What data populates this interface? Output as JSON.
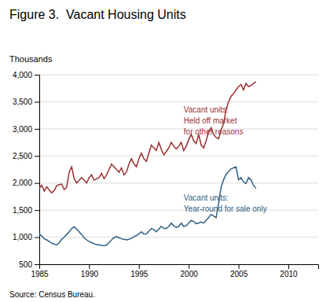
{
  "chart_data": {
    "type": "line",
    "title": "Figure 3.  Vacant Housing Units",
    "ylabel": "Thousands",
    "source": "Source: Census Bureau.",
    "xlim": [
      1985,
      2013.0
    ],
    "ylim": [
      500,
      4000
    ],
    "xticks": [
      1985,
      1990,
      1995,
      2000,
      2005,
      2010
    ],
    "yticks": [
      500,
      {
        "value": 1000,
        "label": "1,000"
      },
      {
        "value": 1500,
        "label": "1,500"
      },
      {
        "value": 2000,
        "label": "2,000"
      },
      {
        "value": 2500,
        "label": "2,500"
      },
      {
        "value": 3000,
        "label": "3,000"
      },
      {
        "value": 3500,
        "label": "3,500"
      },
      {
        "value": 4000,
        "label": "4,000"
      }
    ],
    "grid": true,
    "x": [
      1985,
      1985.25,
      1985.5,
      1985.75,
      1986,
      1986.25,
      1986.5,
      1986.75,
      1987,
      1987.25,
      1987.5,
      1987.75,
      1988,
      1988.25,
      1988.5,
      1988.75,
      1989,
      1989.25,
      1989.5,
      1989.75,
      1990,
      1990.25,
      1990.5,
      1990.75,
      1991,
      1991.25,
      1991.5,
      1991.75,
      1992,
      1992.25,
      1992.5,
      1992.75,
      1993,
      1993.25,
      1993.5,
      1993.75,
      1994,
      1994.25,
      1994.5,
      1994.75,
      1995,
      1995.25,
      1995.5,
      1995.75,
      1996,
      1996.25,
      1996.5,
      1996.75,
      1997,
      1997.25,
      1997.5,
      1997.75,
      1998,
      1998.25,
      1998.5,
      1998.75,
      1999,
      1999.25,
      1999.5,
      1999.75,
      2000,
      2000.25,
      2000.5,
      2000.75,
      2001,
      2001.25,
      2001.5,
      2001.75,
      2002,
      2002.25,
      2002.5,
      2002.75,
      2003,
      2003.25,
      2003.5,
      2003.75,
      2004,
      2004.25,
      2004.5,
      2004.75,
      2005,
      2005.25,
      2005.5,
      2005.75,
      2006,
      2006.25,
      2006.5,
      2006.75
    ],
    "series": [
      {
        "color": "#9B3030",
        "values": [
          1900,
          1960,
          1850,
          1930,
          1870,
          1820,
          1860,
          1950,
          1970,
          1980,
          1880,
          1920,
          2200,
          2300,
          2080,
          2000,
          2050,
          2100,
          2050,
          2000,
          2100,
          2150,
          2050,
          2080,
          2100,
          2180,
          2080,
          2150,
          2250,
          2350,
          2300,
          2250,
          2200,
          2280,
          2150,
          2200,
          2350,
          2450,
          2350,
          2300,
          2450,
          2550,
          2450,
          2400,
          2550,
          2700,
          2650,
          2600,
          2750,
          2620,
          2520,
          2580,
          2650,
          2750,
          2680,
          2630,
          2680,
          2750,
          2600,
          2680,
          2800,
          2900,
          2780,
          2730,
          2900,
          2700,
          2650,
          2780,
          2950,
          3020,
          2900,
          2840,
          2820,
          2980,
          3100,
          3350,
          3500,
          3600,
          3650,
          3720,
          3780,
          3820,
          3720,
          3840,
          3780,
          3800,
          3840,
          3870
        ]
      },
      {
        "color": "#2F6080",
        "values": [
          1060,
          1020,
          970,
          950,
          920,
          890,
          870,
          860,
          900,
          960,
          1000,
          1050,
          1100,
          1160,
          1190,
          1150,
          1100,
          1050,
          990,
          950,
          920,
          900,
          880,
          860,
          860,
          850,
          840,
          855,
          900,
          950,
          990,
          1010,
          990,
          970,
          960,
          950,
          960,
          980,
          1010,
          1030,
          1060,
          1100,
          1060,
          1060,
          1110,
          1160,
          1140,
          1100,
          1150,
          1200,
          1160,
          1160,
          1200,
          1260,
          1210,
          1180,
          1200,
          1260,
          1200,
          1210,
          1260,
          1310,
          1290,
          1250,
          1260,
          1280,
          1260,
          1310,
          1360,
          1420,
          1390,
          1360,
          1620,
          1920,
          2060,
          2160,
          2210,
          2260,
          2280,
          2300,
          2060,
          2100,
          2020,
          1990,
          2100,
          2060,
          1960,
          1900
        ]
      }
    ],
    "annotations": [
      {
        "text": [
          "Vacant units:",
          "Held off market",
          "for other reasons"
        ],
        "x": 1999.5,
        "y": 3450
      },
      {
        "text": [
          "Vacant units:",
          "Year-round for sale only"
        ],
        "x": 1999.5,
        "y": 1820
      }
    ]
  }
}
